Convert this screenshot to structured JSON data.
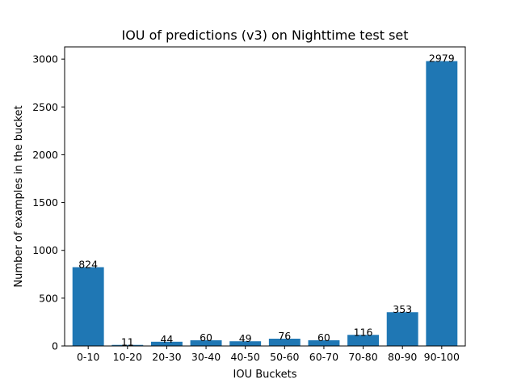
{
  "chart_data": {
    "type": "bar",
    "title": "IOU of predictions (v3) on Nighttime test set",
    "xlabel": "IOU Buckets",
    "ylabel": "Number of examples in the bucket",
    "categories": [
      "0-10",
      "10-20",
      "20-30",
      "30-40",
      "40-50",
      "50-60",
      "60-70",
      "70-80",
      "80-90",
      "90-100"
    ],
    "values": [
      824,
      11,
      44,
      60,
      49,
      76,
      60,
      116,
      353,
      2979
    ],
    "data_labels": [
      "824",
      "11",
      "44",
      "60",
      "49",
      "76",
      "60",
      "116",
      "353",
      "2979"
    ],
    "ylim": [
      0,
      3128
    ],
    "yticks": [
      0,
      500,
      1000,
      1500,
      2000,
      2500,
      3000
    ],
    "bar_color": "#1f77b4",
    "grid": false,
    "legend": "none"
  }
}
